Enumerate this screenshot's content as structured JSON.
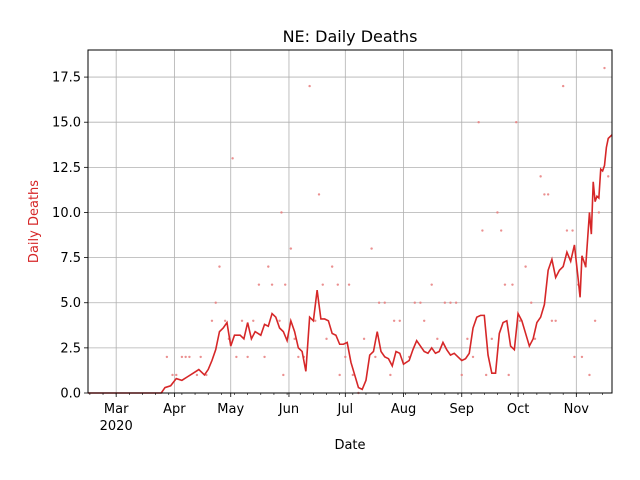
{
  "chart_data": {
    "type": "line",
    "title": "NE: Daily Deaths",
    "xlabel": "Date",
    "ylabel": "Daily Deaths",
    "x_range": [
      "2020-02-15",
      "2020-11-20"
    ],
    "ylim": [
      0,
      19
    ],
    "grid": true,
    "colors": {
      "line": "#d62728",
      "ylabel": "#d62728",
      "points": "#e77c7c"
    },
    "x_ticks": [
      {
        "date": "2020-03-01",
        "label": "Mar",
        "sublabel": "2020"
      },
      {
        "date": "2020-04-01",
        "label": "Apr",
        "sublabel": ""
      },
      {
        "date": "2020-05-01",
        "label": "May",
        "sublabel": ""
      },
      {
        "date": "2020-06-01",
        "label": "Jun",
        "sublabel": ""
      },
      {
        "date": "2020-07-01",
        "label": "Jul",
        "sublabel": ""
      },
      {
        "date": "2020-08-01",
        "label": "Aug",
        "sublabel": ""
      },
      {
        "date": "2020-09-01",
        "label": "Sep",
        "sublabel": ""
      },
      {
        "date": "2020-10-01",
        "label": "Oct",
        "sublabel": ""
      },
      {
        "date": "2020-11-01",
        "label": "Nov",
        "sublabel": ""
      }
    ],
    "y_ticks": [
      {
        "value": 0,
        "label": "0.0"
      },
      {
        "value": 2.5,
        "label": "2.5"
      },
      {
        "value": 5,
        "label": "5.0"
      },
      {
        "value": 7.5,
        "label": "7.5"
      },
      {
        "value": 10,
        "label": "10.0"
      },
      {
        "value": 12.5,
        "label": "12.5"
      },
      {
        "value": 15,
        "label": "15.0"
      },
      {
        "value": 17.5,
        "label": "17.5"
      }
    ],
    "series": [
      {
        "kind": "rolling-average-line",
        "points": [
          [
            "2020-02-15",
            0
          ],
          [
            "2020-03-25",
            0
          ],
          [
            "2020-03-27",
            0.3
          ],
          [
            "2020-03-30",
            0.4
          ],
          [
            "2020-04-02",
            0.8
          ],
          [
            "2020-04-05",
            0.7
          ],
          [
            "2020-04-08",
            0.9
          ],
          [
            "2020-04-11",
            1.1
          ],
          [
            "2020-04-14",
            1.3
          ],
          [
            "2020-04-17",
            1.0
          ],
          [
            "2020-04-19",
            1.3
          ],
          [
            "2020-04-21",
            1.8
          ],
          [
            "2020-04-23",
            2.4
          ],
          [
            "2020-04-25",
            3.4
          ],
          [
            "2020-04-27",
            3.6
          ],
          [
            "2020-04-29",
            3.9
          ],
          [
            "2020-05-01",
            2.6
          ],
          [
            "2020-05-03",
            3.2
          ],
          [
            "2020-05-06",
            3.2
          ],
          [
            "2020-05-08",
            3.0
          ],
          [
            "2020-05-10",
            3.9
          ],
          [
            "2020-05-12",
            3.0
          ],
          [
            "2020-05-14",
            3.4
          ],
          [
            "2020-05-17",
            3.2
          ],
          [
            "2020-05-19",
            3.8
          ],
          [
            "2020-05-21",
            3.7
          ],
          [
            "2020-05-23",
            4.4
          ],
          [
            "2020-05-25",
            4.2
          ],
          [
            "2020-05-27",
            3.6
          ],
          [
            "2020-05-29",
            3.4
          ],
          [
            "2020-05-31",
            2.9
          ],
          [
            "2020-06-02",
            4.0
          ],
          [
            "2020-06-04",
            3.4
          ],
          [
            "2020-06-06",
            2.5
          ],
          [
            "2020-06-08",
            2.3
          ],
          [
            "2020-06-10",
            1.2
          ],
          [
            "2020-06-12",
            4.2
          ],
          [
            "2020-06-14",
            4.0
          ],
          [
            "2020-06-16",
            5.7
          ],
          [
            "2020-06-18",
            4.1
          ],
          [
            "2020-06-20",
            4.1
          ],
          [
            "2020-06-22",
            4.0
          ],
          [
            "2020-06-24",
            3.3
          ],
          [
            "2020-06-26",
            3.2
          ],
          [
            "2020-06-28",
            2.7
          ],
          [
            "2020-06-30",
            2.7
          ],
          [
            "2020-07-02",
            2.8
          ],
          [
            "2020-07-04",
            1.7
          ],
          [
            "2020-07-06",
            1.0
          ],
          [
            "2020-07-08",
            0.3
          ],
          [
            "2020-07-10",
            0.2
          ],
          [
            "2020-07-12",
            0.7
          ],
          [
            "2020-07-14",
            2.1
          ],
          [
            "2020-07-16",
            2.3
          ],
          [
            "2020-07-18",
            3.4
          ],
          [
            "2020-07-20",
            2.3
          ],
          [
            "2020-07-22",
            2.0
          ],
          [
            "2020-07-24",
            1.9
          ],
          [
            "2020-07-26",
            1.5
          ],
          [
            "2020-07-28",
            2.3
          ],
          [
            "2020-07-30",
            2.2
          ],
          [
            "2020-08-01",
            1.6
          ],
          [
            "2020-08-04",
            1.8
          ],
          [
            "2020-08-06",
            2.4
          ],
          [
            "2020-08-08",
            2.9
          ],
          [
            "2020-08-10",
            2.6
          ],
          [
            "2020-08-12",
            2.3
          ],
          [
            "2020-08-14",
            2.2
          ],
          [
            "2020-08-16",
            2.5
          ],
          [
            "2020-08-18",
            2.2
          ],
          [
            "2020-08-20",
            2.3
          ],
          [
            "2020-08-22",
            2.8
          ],
          [
            "2020-08-24",
            2.4
          ],
          [
            "2020-08-26",
            2.1
          ],
          [
            "2020-08-28",
            2.2
          ],
          [
            "2020-08-30",
            2.0
          ],
          [
            "2020-09-01",
            1.8
          ],
          [
            "2020-09-03",
            1.9
          ],
          [
            "2020-09-05",
            2.2
          ],
          [
            "2020-09-07",
            3.6
          ],
          [
            "2020-09-09",
            4.2
          ],
          [
            "2020-09-11",
            4.3
          ],
          [
            "2020-09-13",
            4.3
          ],
          [
            "2020-09-15",
            2.1
          ],
          [
            "2020-09-17",
            1.1
          ],
          [
            "2020-09-19",
            1.1
          ],
          [
            "2020-09-21",
            3.3
          ],
          [
            "2020-09-23",
            3.9
          ],
          [
            "2020-09-25",
            4.0
          ],
          [
            "2020-09-27",
            2.6
          ],
          [
            "2020-09-29",
            2.4
          ],
          [
            "2020-10-01",
            4.4
          ],
          [
            "2020-10-03",
            4.0
          ],
          [
            "2020-10-05",
            3.3
          ],
          [
            "2020-10-07",
            2.6
          ],
          [
            "2020-10-09",
            3.0
          ],
          [
            "2020-10-11",
            3.9
          ],
          [
            "2020-10-13",
            4.2
          ],
          [
            "2020-10-15",
            4.9
          ],
          [
            "2020-10-17",
            6.8
          ],
          [
            "2020-10-19",
            7.4
          ],
          [
            "2020-10-21",
            6.4
          ],
          [
            "2020-10-23",
            6.8
          ],
          [
            "2020-10-25",
            7.0
          ],
          [
            "2020-10-27",
            7.8
          ],
          [
            "2020-10-29",
            7.3
          ],
          [
            "2020-10-31",
            8.2
          ],
          [
            "2020-11-02",
            6.3
          ],
          [
            "2020-11-03",
            5.3
          ],
          [
            "2020-11-04",
            7.6
          ],
          [
            "2020-11-06",
            7.0
          ],
          [
            "2020-11-08",
            10.0
          ],
          [
            "2020-11-09",
            8.8
          ],
          [
            "2020-11-10",
            11.7
          ],
          [
            "2020-11-11",
            10.6
          ],
          [
            "2020-11-12",
            10.9
          ],
          [
            "2020-11-13",
            10.8
          ],
          [
            "2020-11-14",
            12.4
          ],
          [
            "2020-11-15",
            12.3
          ],
          [
            "2020-11-16",
            12.6
          ],
          [
            "2020-11-17",
            13.6
          ],
          [
            "2020-11-18",
            14.1
          ],
          [
            "2020-11-20",
            14.3
          ]
        ]
      },
      {
        "kind": "daily-points",
        "points": [
          [
            "2020-03-28",
            2
          ],
          [
            "2020-03-31",
            1
          ],
          [
            "2020-04-02",
            1
          ],
          [
            "2020-04-05",
            2
          ],
          [
            "2020-04-07",
            2
          ],
          [
            "2020-04-09",
            2
          ],
          [
            "2020-04-13",
            1
          ],
          [
            "2020-04-15",
            2
          ],
          [
            "2020-04-18",
            1
          ],
          [
            "2020-04-21",
            4
          ],
          [
            "2020-04-23",
            5
          ],
          [
            "2020-04-25",
            7
          ],
          [
            "2020-04-28",
            4
          ],
          [
            "2020-04-30",
            3
          ],
          [
            "2020-05-02",
            13
          ],
          [
            "2020-05-04",
            2
          ],
          [
            "2020-05-07",
            4
          ],
          [
            "2020-05-10",
            2
          ],
          [
            "2020-05-13",
            4
          ],
          [
            "2020-05-16",
            6
          ],
          [
            "2020-05-19",
            2
          ],
          [
            "2020-05-21",
            7
          ],
          [
            "2020-05-23",
            6
          ],
          [
            "2020-05-27",
            4
          ],
          [
            "2020-05-28",
            10
          ],
          [
            "2020-05-29",
            1
          ],
          [
            "2020-05-30",
            6
          ],
          [
            "2020-06-02",
            8
          ],
          [
            "2020-06-04",
            3
          ],
          [
            "2020-06-06",
            2
          ],
          [
            "2020-06-09",
            2
          ],
          [
            "2020-06-12",
            17
          ],
          [
            "2020-06-15",
            4
          ],
          [
            "2020-06-17",
            11
          ],
          [
            "2020-06-19",
            6
          ],
          [
            "2020-06-21",
            3
          ],
          [
            "2020-06-24",
            7
          ],
          [
            "2020-06-27",
            6
          ],
          [
            "2020-06-28",
            1
          ],
          [
            "2020-07-01",
            2
          ],
          [
            "2020-07-03",
            6
          ],
          [
            "2020-07-05",
            1
          ],
          [
            "2020-07-08",
            0
          ],
          [
            "2020-07-11",
            3
          ],
          [
            "2020-07-15",
            8
          ],
          [
            "2020-07-17",
            2
          ],
          [
            "2020-07-19",
            5
          ],
          [
            "2020-07-22",
            5
          ],
          [
            "2020-07-25",
            1
          ],
          [
            "2020-07-27",
            4
          ],
          [
            "2020-07-30",
            4
          ],
          [
            "2020-08-04",
            2
          ],
          [
            "2020-08-07",
            5
          ],
          [
            "2020-08-10",
            5
          ],
          [
            "2020-08-12",
            4
          ],
          [
            "2020-08-16",
            6
          ],
          [
            "2020-08-19",
            3
          ],
          [
            "2020-08-23",
            5
          ],
          [
            "2020-08-26",
            5
          ],
          [
            "2020-08-29",
            5
          ],
          [
            "2020-09-01",
            1
          ],
          [
            "2020-09-04",
            3
          ],
          [
            "2020-09-07",
            2
          ],
          [
            "2020-09-10",
            15
          ],
          [
            "2020-09-12",
            9
          ],
          [
            "2020-09-14",
            1
          ],
          [
            "2020-09-17",
            3
          ],
          [
            "2020-09-20",
            10
          ],
          [
            "2020-09-22",
            9
          ],
          [
            "2020-09-24",
            6
          ],
          [
            "2020-09-26",
            1
          ],
          [
            "2020-09-28",
            6
          ],
          [
            "2020-09-30",
            15
          ],
          [
            "2020-10-02",
            4
          ],
          [
            "2020-10-05",
            7
          ],
          [
            "2020-10-08",
            5
          ],
          [
            "2020-10-10",
            3
          ],
          [
            "2020-10-13",
            12
          ],
          [
            "2020-10-15",
            11
          ],
          [
            "2020-10-17",
            11
          ],
          [
            "2020-10-19",
            4
          ],
          [
            "2020-10-21",
            4
          ],
          [
            "2020-10-25",
            17
          ],
          [
            "2020-10-27",
            9
          ],
          [
            "2020-10-30",
            9
          ],
          [
            "2020-10-31",
            2
          ],
          [
            "2020-11-02",
            6
          ],
          [
            "2020-11-04",
            2
          ],
          [
            "2020-11-06",
            7
          ],
          [
            "2020-11-08",
            1
          ],
          [
            "2020-11-11",
            4
          ],
          [
            "2020-11-13",
            10
          ],
          [
            "2020-11-16",
            18
          ],
          [
            "2020-11-18",
            12
          ]
        ]
      }
    ]
  }
}
